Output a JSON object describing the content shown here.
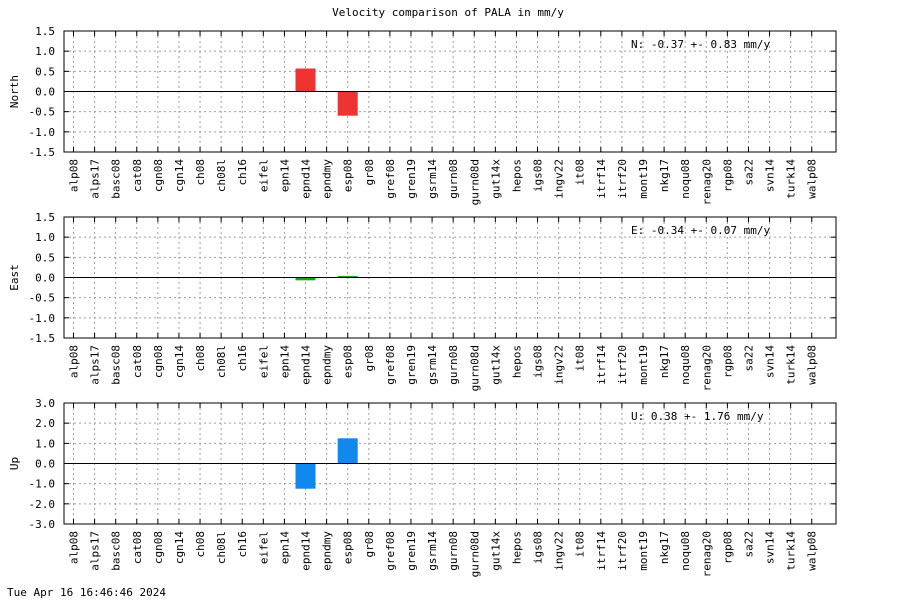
{
  "figure_title": "Velocity comparison of PALA in mm/y",
  "footer_timestamp": "Tue Apr 16 16:46:46 2024",
  "chart_data": [
    {
      "type": "bar",
      "ylabel": "North",
      "annotation": "N:  -0.37 +-  0.83 mm/y",
      "ylim": [
        -1.5,
        1.5
      ],
      "yticks": [
        -1.5,
        -1.0,
        -0.5,
        0.0,
        0.5,
        1.0,
        1.5
      ],
      "ytick_labels": [
        "-1.5",
        "-1.0",
        "-0.5",
        "0.0",
        "0.5",
        "1.0",
        "1.5"
      ],
      "grid": true,
      "color": "#ee3333",
      "categories": [
        "alp08",
        "alps17",
        "basc08",
        "cat08",
        "cgn08",
        "cgn14",
        "ch08",
        "ch08l",
        "ch16",
        "eifel",
        "epn14",
        "epnd14",
        "epndmy",
        "esp08",
        "gr08",
        "gref08",
        "gren19",
        "gsrm14",
        "gurn08",
        "gurn08d",
        "gut14x",
        "hepos",
        "igs08",
        "ingv22",
        "it08",
        "itrf14",
        "itrf20",
        "mont19",
        "nkg17",
        "noqu08",
        "renag20",
        "rgp08",
        "sa22",
        "svn14",
        "turk14",
        "walp08"
      ],
      "values": [
        null,
        null,
        null,
        null,
        null,
        null,
        null,
        null,
        null,
        null,
        null,
        0.57,
        null,
        -0.6,
        null,
        null,
        null,
        null,
        null,
        null,
        null,
        null,
        null,
        null,
        null,
        null,
        null,
        null,
        null,
        null,
        null,
        null,
        null,
        null,
        null,
        null
      ]
    },
    {
      "type": "bar",
      "ylabel": "East",
      "annotation": "E:  -0.34 +-  0.07 mm/y",
      "ylim": [
        -1.5,
        1.5
      ],
      "yticks": [
        -1.5,
        -1.0,
        -0.5,
        0.0,
        0.5,
        1.0,
        1.5
      ],
      "ytick_labels": [
        "-1.5",
        "-1.0",
        "-0.5",
        "0.0",
        "0.5",
        "1.0",
        "1.5"
      ],
      "grid": true,
      "color": "#11aa11",
      "categories": [
        "alp08",
        "alps17",
        "basc08",
        "cat08",
        "cgn08",
        "cgn14",
        "ch08",
        "ch08l",
        "ch16",
        "eifel",
        "epn14",
        "epnd14",
        "epndmy",
        "esp08",
        "gr08",
        "gref08",
        "gren19",
        "gsrm14",
        "gurn08",
        "gurn08d",
        "gut14x",
        "hepos",
        "igs08",
        "ingv22",
        "it08",
        "itrf14",
        "itrf20",
        "mont19",
        "nkg17",
        "noqu08",
        "renag20",
        "rgp08",
        "sa22",
        "svn14",
        "turk14",
        "walp08"
      ],
      "values": [
        null,
        null,
        null,
        null,
        null,
        null,
        null,
        null,
        null,
        null,
        null,
        -0.07,
        null,
        0.04,
        null,
        null,
        null,
        null,
        null,
        null,
        null,
        null,
        null,
        null,
        null,
        null,
        null,
        null,
        null,
        null,
        null,
        null,
        null,
        null,
        null,
        null
      ]
    },
    {
      "type": "bar",
      "ylabel": "Up",
      "annotation": "U:   0.38 +-  1.76 mm/y",
      "ylim": [
        -3.0,
        3.0
      ],
      "yticks": [
        -3.0,
        -2.0,
        -1.0,
        0.0,
        1.0,
        2.0,
        3.0
      ],
      "ytick_labels": [
        "-3.0",
        "-2.0",
        "-1.0",
        "0.0",
        "1.0",
        "2.0",
        "3.0"
      ],
      "grid": true,
      "color": "#1188ee",
      "categories": [
        "alp08",
        "alps17",
        "basc08",
        "cat08",
        "cgn08",
        "cgn14",
        "ch08",
        "ch08l",
        "ch16",
        "eifel",
        "epn14",
        "epnd14",
        "epndmy",
        "esp08",
        "gr08",
        "gref08",
        "gren19",
        "gsrm14",
        "gurn08",
        "gurn08d",
        "gut14x",
        "hepos",
        "igs08",
        "ingv22",
        "it08",
        "itrf14",
        "itrf20",
        "mont19",
        "nkg17",
        "noqu08",
        "renag20",
        "rgp08",
        "sa22",
        "svn14",
        "turk14",
        "walp08"
      ],
      "values": [
        null,
        null,
        null,
        null,
        null,
        null,
        null,
        null,
        null,
        null,
        null,
        -1.25,
        null,
        1.25,
        null,
        null,
        null,
        null,
        null,
        null,
        null,
        null,
        null,
        null,
        null,
        null,
        null,
        null,
        null,
        null,
        null,
        null,
        null,
        null,
        null,
        null
      ]
    }
  ]
}
